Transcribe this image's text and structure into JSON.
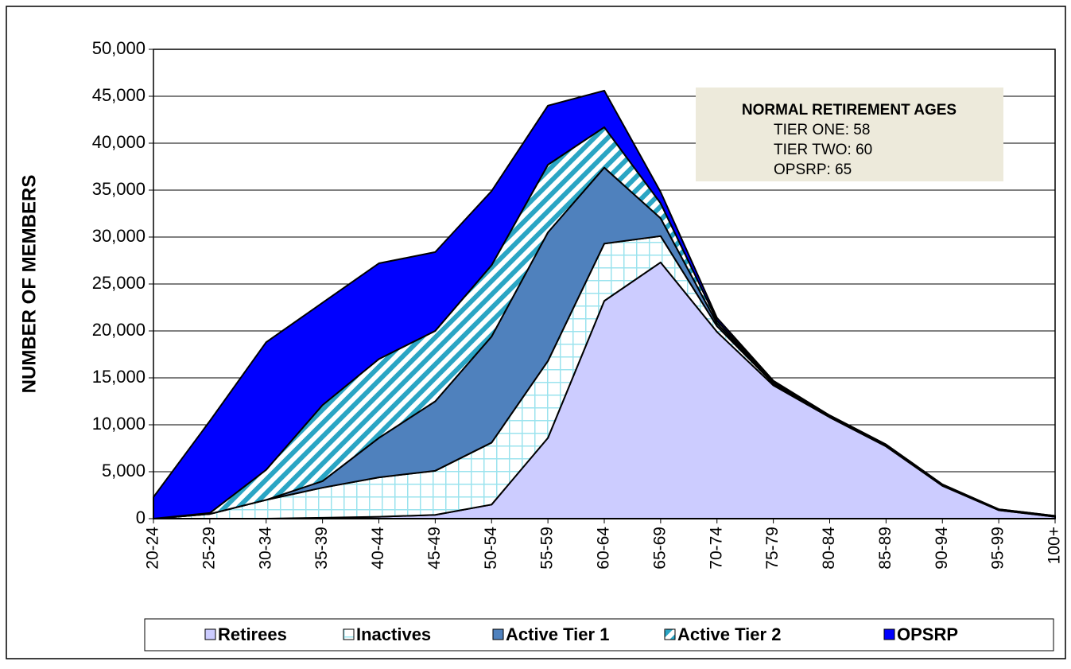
{
  "chart_data": {
    "type": "stacked_area",
    "y_label": "NUMBER OF MEMBERS",
    "categories": [
      "20-24",
      "25-29",
      "30-34",
      "35-39",
      "40-44",
      "45-49",
      "50-54",
      "55-59",
      "60-64",
      "65-69",
      "70-74",
      "75-79",
      "80-84",
      "85-89",
      "90-94",
      "95-99",
      "100+"
    ],
    "series": [
      {
        "name": "Retirees",
        "color": "#ccccff",
        "values": [
          0,
          0,
          0,
          100,
          200,
          400,
          1500,
          8600,
          23200,
          27300,
          19900,
          14200,
          10800,
          7700,
          3500,
          900,
          200
        ]
      },
      {
        "name": "Inactives",
        "color": "#9be3ee",
        "pattern": "grid",
        "values": [
          0,
          500,
          2000,
          3200,
          4200,
          4700,
          6600,
          8200,
          6100,
          2800,
          600,
          200,
          100,
          100,
          100,
          50,
          50
        ]
      },
      {
        "name": "Active Tier 1",
        "color": "#4f81bd",
        "values": [
          0,
          0,
          0,
          700,
          4200,
          7400,
          11300,
          13700,
          8100,
          1900,
          300,
          50,
          50,
          50,
          0,
          0,
          0
        ]
      },
      {
        "name": "Active Tier 2",
        "color": "#2aa5c4",
        "pattern": "diagonal",
        "values": [
          0,
          100,
          3200,
          8100,
          8400,
          7500,
          7600,
          7200,
          4300,
          1600,
          300,
          100,
          50,
          50,
          50,
          50,
          50
        ]
      },
      {
        "name": "OPSRP",
        "color": "#0000ff",
        "values": [
          2300,
          9800,
          13600,
          10900,
          10200,
          8400,
          7900,
          6300,
          3900,
          1200,
          300,
          150,
          0,
          0,
          0,
          0,
          0
        ]
      }
    ],
    "ylim": [
      0,
      50000
    ],
    "yticks": [
      0,
      {
        "value": 5000,
        "label": "5,000"
      },
      {
        "value": 10000,
        "label": "10,000"
      },
      {
        "value": 15000,
        "label": "15,000"
      },
      {
        "value": 20000,
        "label": "20,000"
      },
      {
        "value": 25000,
        "label": "25,000"
      },
      {
        "value": 30000,
        "label": "30,000"
      },
      {
        "value": 35000,
        "label": "35,000"
      },
      {
        "value": 40000,
        "label": "40,000"
      },
      {
        "value": 45000,
        "label": "45,000"
      },
      {
        "value": 50000,
        "label": "50,000"
      }
    ],
    "grid": true,
    "legend": "bottom",
    "annotation": {
      "title": "NORMAL RETIREMENT AGES",
      "lines": [
        "TIER ONE: 58",
        "TIER TWO: 60",
        "OPSRP: 65"
      ]
    }
  }
}
